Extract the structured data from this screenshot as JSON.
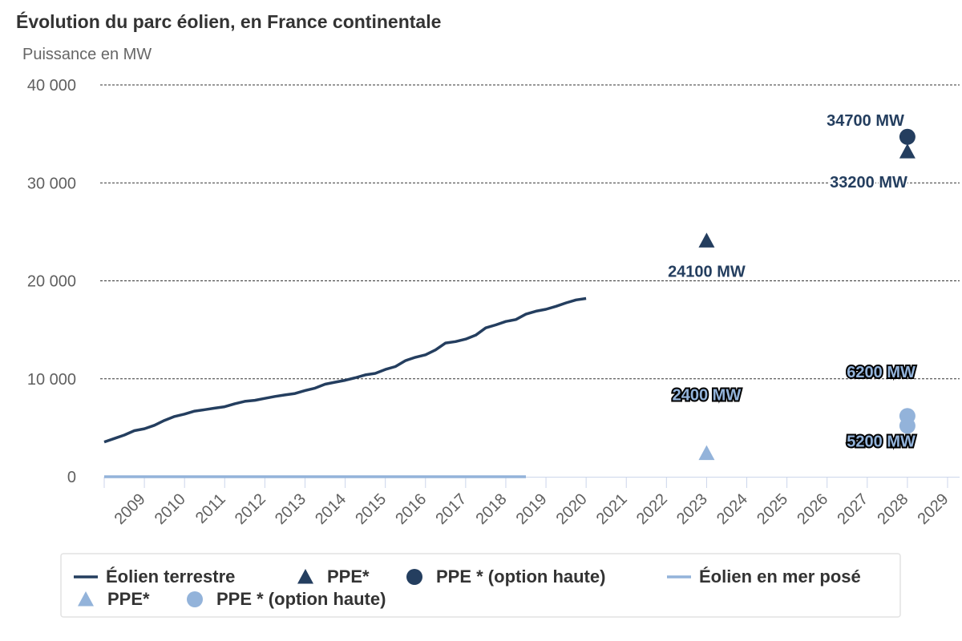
{
  "chart_data": {
    "type": "line",
    "title": "Évolution du parc éolien, en France continentale",
    "subtitle": "Puissance en MW",
    "xlabel": "",
    "ylabel": "Puissance en MW",
    "xlim": [
      2008,
      2029
    ],
    "ylim": [
      0,
      40000
    ],
    "y_ticks": [
      {
        "value": 0,
        "label": "0"
      },
      {
        "value": 10000,
        "label": "10 000"
      },
      {
        "value": 20000,
        "label": "20 000"
      },
      {
        "value": 30000,
        "label": "30 000"
      },
      {
        "value": 40000,
        "label": "40 000"
      }
    ],
    "x_ticks": [
      "2009",
      "2010",
      "2011",
      "2012",
      "2013",
      "2014",
      "2015",
      "2016",
      "2017",
      "2018",
      "2019",
      "2020",
      "2021",
      "2022",
      "2023",
      "2024",
      "2025",
      "2026",
      "2027",
      "2028",
      "2029"
    ],
    "grid": true,
    "legend_position": "bottom",
    "series": [
      {
        "name": "Éolien terrestre",
        "kind": "line",
        "color": "#243e5f",
        "points": [
          [
            2008.0,
            3550
          ],
          [
            2008.25,
            3900
          ],
          [
            2008.5,
            4250
          ],
          [
            2008.75,
            4700
          ],
          [
            2009.0,
            4900
          ],
          [
            2009.25,
            5250
          ],
          [
            2009.5,
            5750
          ],
          [
            2009.75,
            6150
          ],
          [
            2010.0,
            6400
          ],
          [
            2010.25,
            6700
          ],
          [
            2010.5,
            6850
          ],
          [
            2010.75,
            7000
          ],
          [
            2011.0,
            7150
          ],
          [
            2011.25,
            7450
          ],
          [
            2011.5,
            7700
          ],
          [
            2011.75,
            7800
          ],
          [
            2012.0,
            8000
          ],
          [
            2012.25,
            8200
          ],
          [
            2012.5,
            8350
          ],
          [
            2012.75,
            8500
          ],
          [
            2013.0,
            8800
          ],
          [
            2013.25,
            9050
          ],
          [
            2013.5,
            9450
          ],
          [
            2013.75,
            9650
          ],
          [
            2014.0,
            9850
          ],
          [
            2014.25,
            10100
          ],
          [
            2014.5,
            10400
          ],
          [
            2014.75,
            10550
          ],
          [
            2015.0,
            10950
          ],
          [
            2015.25,
            11250
          ],
          [
            2015.5,
            11850
          ],
          [
            2015.75,
            12200
          ],
          [
            2016.0,
            12450
          ],
          [
            2016.25,
            12950
          ],
          [
            2016.5,
            13650
          ],
          [
            2016.75,
            13800
          ],
          [
            2017.0,
            14050
          ],
          [
            2017.25,
            14450
          ],
          [
            2017.5,
            15200
          ],
          [
            2017.75,
            15500
          ],
          [
            2018.0,
            15850
          ],
          [
            2018.25,
            16050
          ],
          [
            2018.5,
            16600
          ],
          [
            2018.75,
            16900
          ],
          [
            2019.0,
            17100
          ],
          [
            2019.25,
            17400
          ],
          [
            2019.5,
            17750
          ],
          [
            2019.75,
            18050
          ],
          [
            2020.0,
            18200
          ]
        ]
      },
      {
        "name": "PPE*",
        "kind": "marker",
        "marker": "triangle",
        "color": "#243e5f",
        "points": [
          {
            "x": 2023,
            "y": 24100,
            "label": "24100 MW"
          },
          {
            "x": 2028,
            "y": 33200,
            "label": "33200 MW"
          }
        ]
      },
      {
        "name": "PPE * (option haute)",
        "kind": "marker",
        "marker": "circle",
        "color": "#243e5f",
        "points": [
          {
            "x": 2028,
            "y": 34700,
            "label": "34700 MW"
          }
        ]
      },
      {
        "name": "Éolien en mer posé",
        "kind": "line",
        "color": "#93b3da",
        "points": [
          [
            2008.0,
            0
          ],
          [
            2018.5,
            0
          ]
        ]
      },
      {
        "name": "PPE*",
        "kind": "marker",
        "marker": "triangle",
        "color": "#93b3da",
        "points": [
          {
            "x": 2023,
            "y": 2400,
            "label": "2400 MW"
          }
        ]
      },
      {
        "name": "PPE * (option haute)",
        "kind": "marker",
        "marker": "circle",
        "color": "#93b3da",
        "points": [
          {
            "x": 2028,
            "y": 6200,
            "label": "6200 MW"
          },
          {
            "x": 2028,
            "y": 5200,
            "label": "5200 MW"
          }
        ]
      }
    ]
  }
}
